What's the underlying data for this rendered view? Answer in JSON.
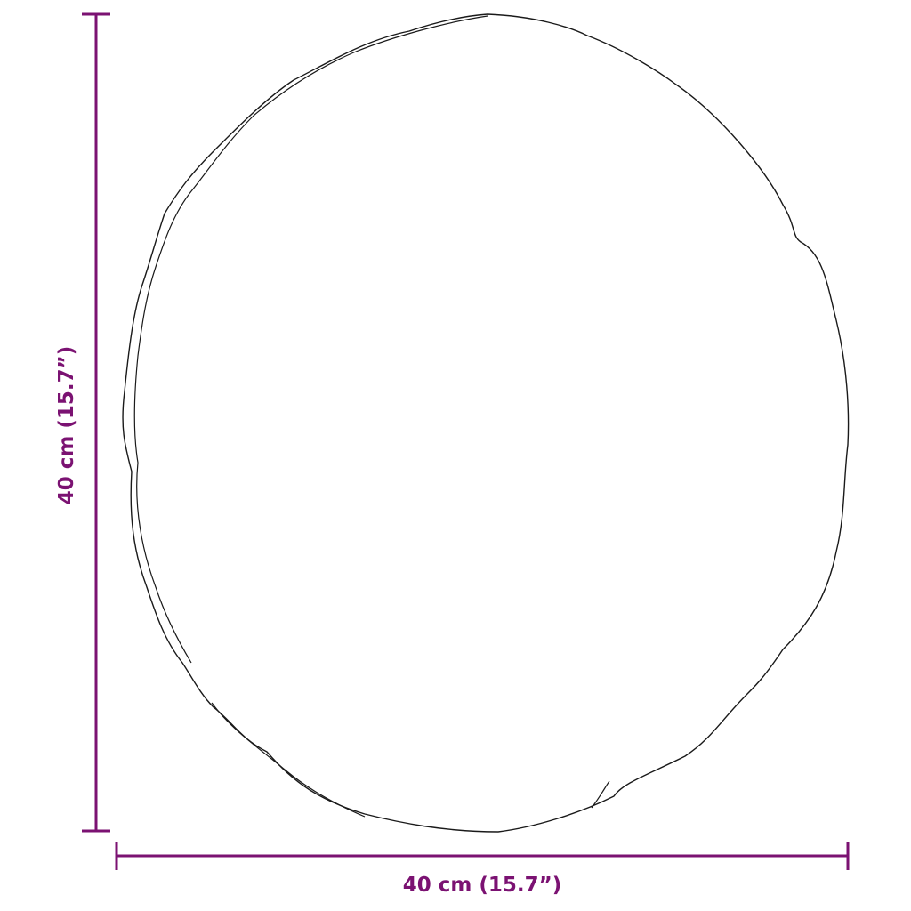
{
  "colors": {
    "dimension": "#7b1272",
    "outline": "#1a1a1a"
  },
  "dimensions": {
    "height_label": "40 cm (15.7”)",
    "width_label": "40 cm (15.7”)"
  }
}
